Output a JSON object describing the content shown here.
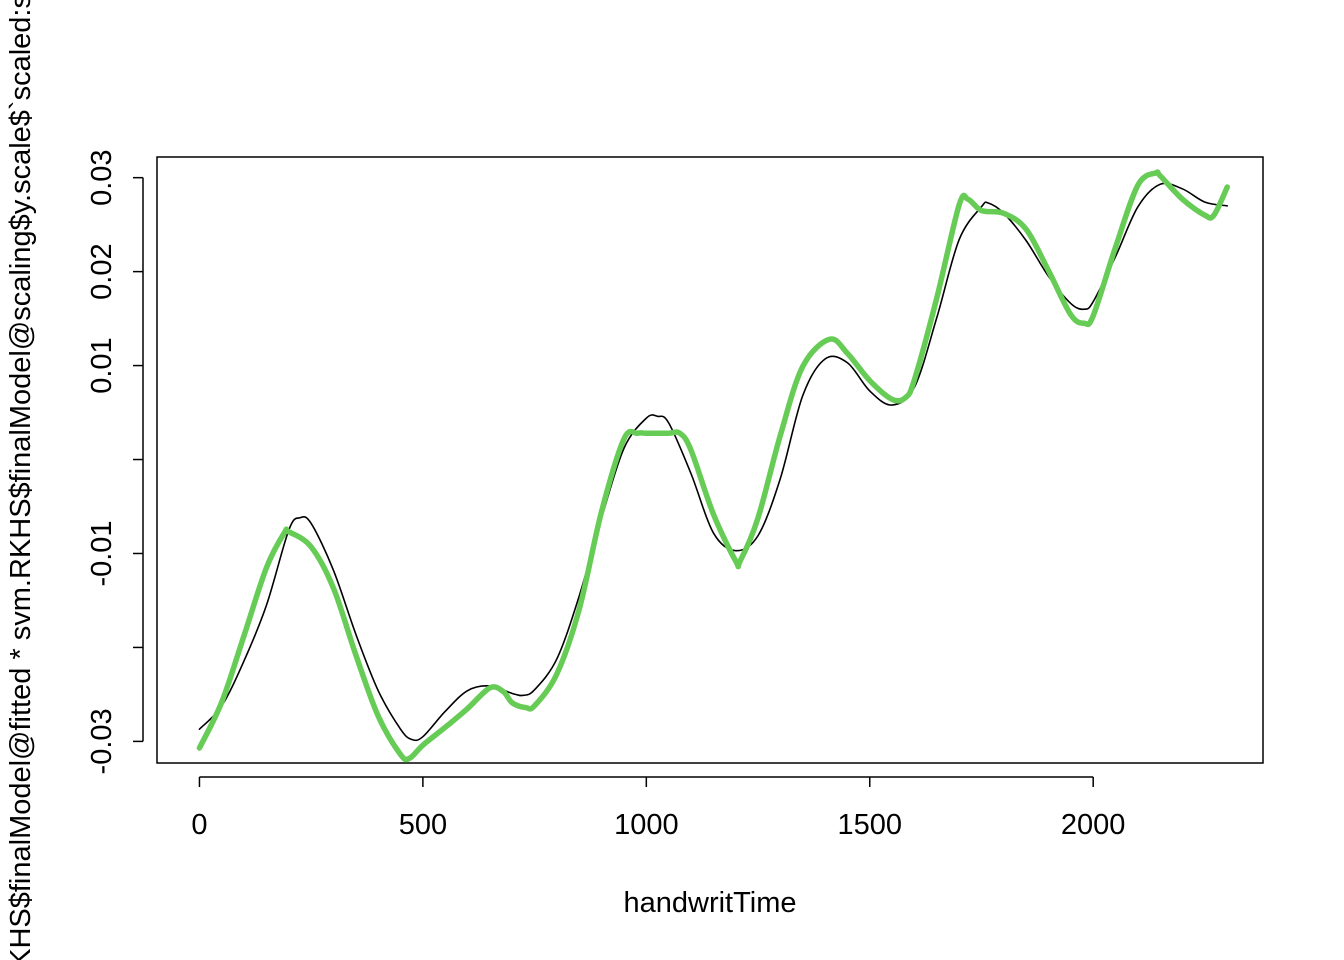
{
  "chart_data": {
    "type": "line",
    "title": "",
    "xlabel": "handwritTime",
    "ylabel": "RKHS$finalModel@fitted * svm.RKHS$finalModel@scaling$y.scale$`scaled:scale`",
    "xlim": [
      -95,
      2380
    ],
    "ylim": [
      -0.0323,
      0.0322
    ],
    "x_ticks": [
      0,
      500,
      1000,
      1500,
      2000
    ],
    "x_tick_labels": [
      "0",
      "500",
      "1000",
      "1500",
      "2000"
    ],
    "y_ticks": [
      -0.03,
      -0.02,
      -0.01,
      0.0,
      0.01,
      0.02,
      0.03
    ],
    "y_tick_labels": [
      "-0.03",
      "",
      "-0.01",
      "",
      "0.01",
      "0.02",
      "0.03"
    ],
    "grid": false,
    "legend": "none",
    "series": [
      {
        "color": "#000000",
        "style": "thin",
        "x": [
          0,
          50,
          100,
          150,
          200,
          225,
          250,
          300,
          350,
          400,
          450,
          475,
          500,
          550,
          600,
          650,
          700,
          725,
          750,
          800,
          850,
          900,
          950,
          1000,
          1025,
          1050,
          1100,
          1150,
          1200,
          1250,
          1300,
          1350,
          1400,
          1450,
          1500,
          1550,
          1600,
          1650,
          1700,
          1750,
          1765,
          1800,
          1850,
          1900,
          1950,
          1980,
          2000,
          2050,
          2100,
          2150,
          2200,
          2250,
          2300
        ],
        "y": [
          -0.0287,
          -0.0262,
          -0.0214,
          -0.0155,
          -0.0075,
          -0.0062,
          -0.0068,
          -0.0118,
          -0.0186,
          -0.0246,
          -0.0287,
          -0.0298,
          -0.0295,
          -0.0268,
          -0.0246,
          -0.0241,
          -0.0249,
          -0.0251,
          -0.0245,
          -0.0212,
          -0.0145,
          -0.0062,
          0.0012,
          0.0044,
          0.0046,
          0.0039,
          -0.0015,
          -0.0078,
          -0.0097,
          -0.0081,
          -0.002,
          0.0068,
          0.0107,
          0.0103,
          0.0073,
          0.0058,
          0.0077,
          0.0151,
          0.0234,
          0.0269,
          0.0273,
          0.0262,
          0.0233,
          0.0195,
          0.0166,
          0.016,
          0.0168,
          0.0216,
          0.0269,
          0.0293,
          0.0288,
          0.0274,
          0.027
        ]
      },
      {
        "color": "#66cc55",
        "style": "thick",
        "x": [
          0,
          50,
          100,
          150,
          190,
          200,
          250,
          300,
          350,
          400,
          450,
          470,
          500,
          550,
          600,
          650,
          680,
          700,
          730,
          750,
          800,
          850,
          900,
          950,
          980,
          1000,
          1050,
          1075,
          1100,
          1150,
          1200,
          1210,
          1250,
          1300,
          1350,
          1410,
          1450,
          1500,
          1550,
          1580,
          1600,
          1650,
          1700,
          1720,
          1750,
          1800,
          1850,
          1900,
          1950,
          1980,
          2000,
          2050,
          2100,
          2140,
          2150,
          2200,
          2250,
          2270,
          2300
        ],
        "y": [
          -0.0307,
          -0.0258,
          -0.0187,
          -0.0115,
          -0.0078,
          -0.0077,
          -0.0093,
          -0.0137,
          -0.0208,
          -0.0273,
          -0.0314,
          -0.0318,
          -0.0304,
          -0.0285,
          -0.0265,
          -0.0243,
          -0.0247,
          -0.0259,
          -0.0264,
          -0.0262,
          -0.0228,
          -0.0159,
          -0.0055,
          0.0022,
          0.0028,
          0.0028,
          0.0028,
          0.0028,
          0.001,
          -0.0058,
          -0.0108,
          -0.0108,
          -0.0062,
          0.0026,
          0.0099,
          0.0128,
          0.0113,
          0.0084,
          0.0064,
          0.0066,
          0.0085,
          0.0172,
          0.0271,
          0.0277,
          0.0265,
          0.0262,
          0.0245,
          0.0201,
          0.0154,
          0.0145,
          0.0153,
          0.0226,
          0.0292,
          0.0305,
          0.0302,
          0.0277,
          0.026,
          0.026,
          0.029
        ]
      }
    ]
  }
}
